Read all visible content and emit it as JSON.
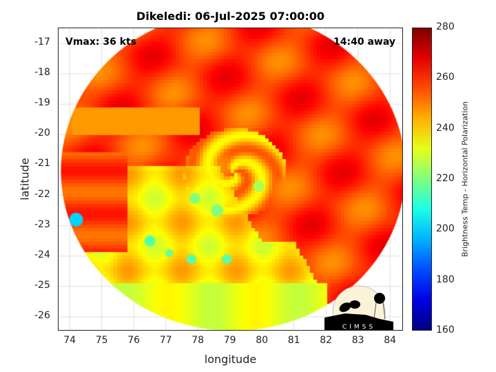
{
  "title": "Dikeledi: 06-Jul-2025 07:00:00",
  "vmax_label": "Vmax: 36 kts",
  "time_label": "14:40 away",
  "xlabel": "longitude",
  "ylabel": "latitude",
  "x_ticks": [
    "74",
    "75",
    "76",
    "77",
    "78",
    "79",
    "80",
    "81",
    "82",
    "83",
    "84"
  ],
  "y_ticks": [
    "-17",
    "-18",
    "-19",
    "-20",
    "-21",
    "-22",
    "-23",
    "-24",
    "-25",
    "-26"
  ],
  "colorbar": {
    "label": "Brightness Temp - Horizontal Polarization",
    "ticks": [
      "280",
      "260",
      "240",
      "220",
      "200",
      "180",
      "160"
    ],
    "range": [
      160,
      280
    ],
    "colormap": "jet"
  },
  "logo_text": "CIMSS",
  "chart_data": {
    "type": "heatmap",
    "title": "Dikeledi: 06-Jul-2025 07:00:00",
    "xlabel": "longitude",
    "ylabel": "latitude",
    "xlim": [
      73.65,
      84.45
    ],
    "ylim": [
      -26.5,
      -16.5
    ],
    "grid": true,
    "center": {
      "lon": 79.1,
      "lat": -21.1
    },
    "annotations": [
      "Vmax: 36 kts",
      "14:40 away"
    ]
  }
}
